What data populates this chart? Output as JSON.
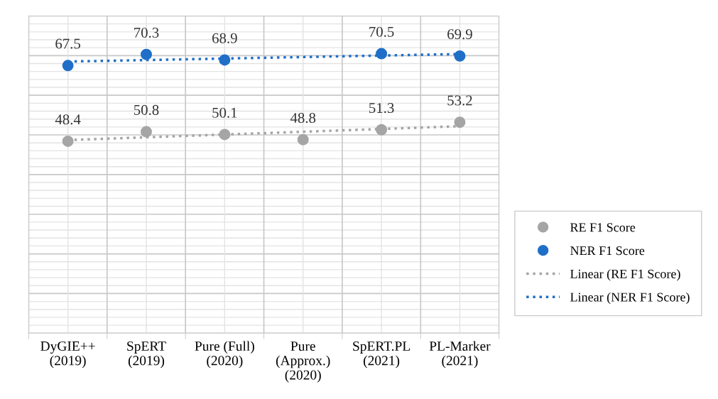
{
  "chart_data": {
    "type": "scatter",
    "categories": [
      "DyGIE++\n(2019)",
      "SpERT\n(2019)",
      "Pure (Full)\n(2020)",
      "Pure\n(Approx.)\n(2020)",
      "SpERT.PL\n(2021)",
      "PL-Marker\n(2021)"
    ],
    "series": [
      {
        "name": "RE F1 Score",
        "color": "#a5a5a5",
        "values": [
          48.4,
          50.8,
          50.1,
          48.8,
          51.3,
          53.2
        ],
        "data_labels": true
      },
      {
        "name": "NER F1 Score",
        "color": "#1f6fc9",
        "values": [
          67.5,
          70.3,
          68.9,
          null,
          70.5,
          69.9
        ],
        "data_labels": true
      },
      {
        "name": "Linear (RE F1 Score)",
        "type": "line",
        "color": "#a5a5a5",
        "line_style": "dotted",
        "marker": "none",
        "x": [
          "DyGIE++\n(2019)",
          "PL-Marker\n(2021)"
        ],
        "values": [
          48.7,
          52.2
        ]
      },
      {
        "name": "Linear (NER F1 Score)",
        "type": "line",
        "color": "#1f6fc9",
        "line_style": "dotted",
        "marker": "none",
        "x": [
          "DyGIE++\n(2019)",
          "PL-Marker\n(2021)"
        ],
        "values": [
          68.5,
          70.4
        ]
      }
    ],
    "marker": "circle",
    "ylim": [
      0,
      80
    ],
    "yticks": [
      {
        "value": 0,
        "label": null
      },
      {
        "value": 10,
        "label": null
      },
      {
        "value": 20,
        "label": null
      },
      {
        "value": 30,
        "label": null
      },
      {
        "value": 40,
        "label": null
      },
      {
        "value": 50,
        "label": null
      },
      {
        "value": 60,
        "label": null
      },
      {
        "value": 70,
        "label": null
      },
      {
        "value": 80,
        "label": null
      }
    ],
    "tick_labels": "x",
    "grid": true,
    "legend": "right"
  }
}
